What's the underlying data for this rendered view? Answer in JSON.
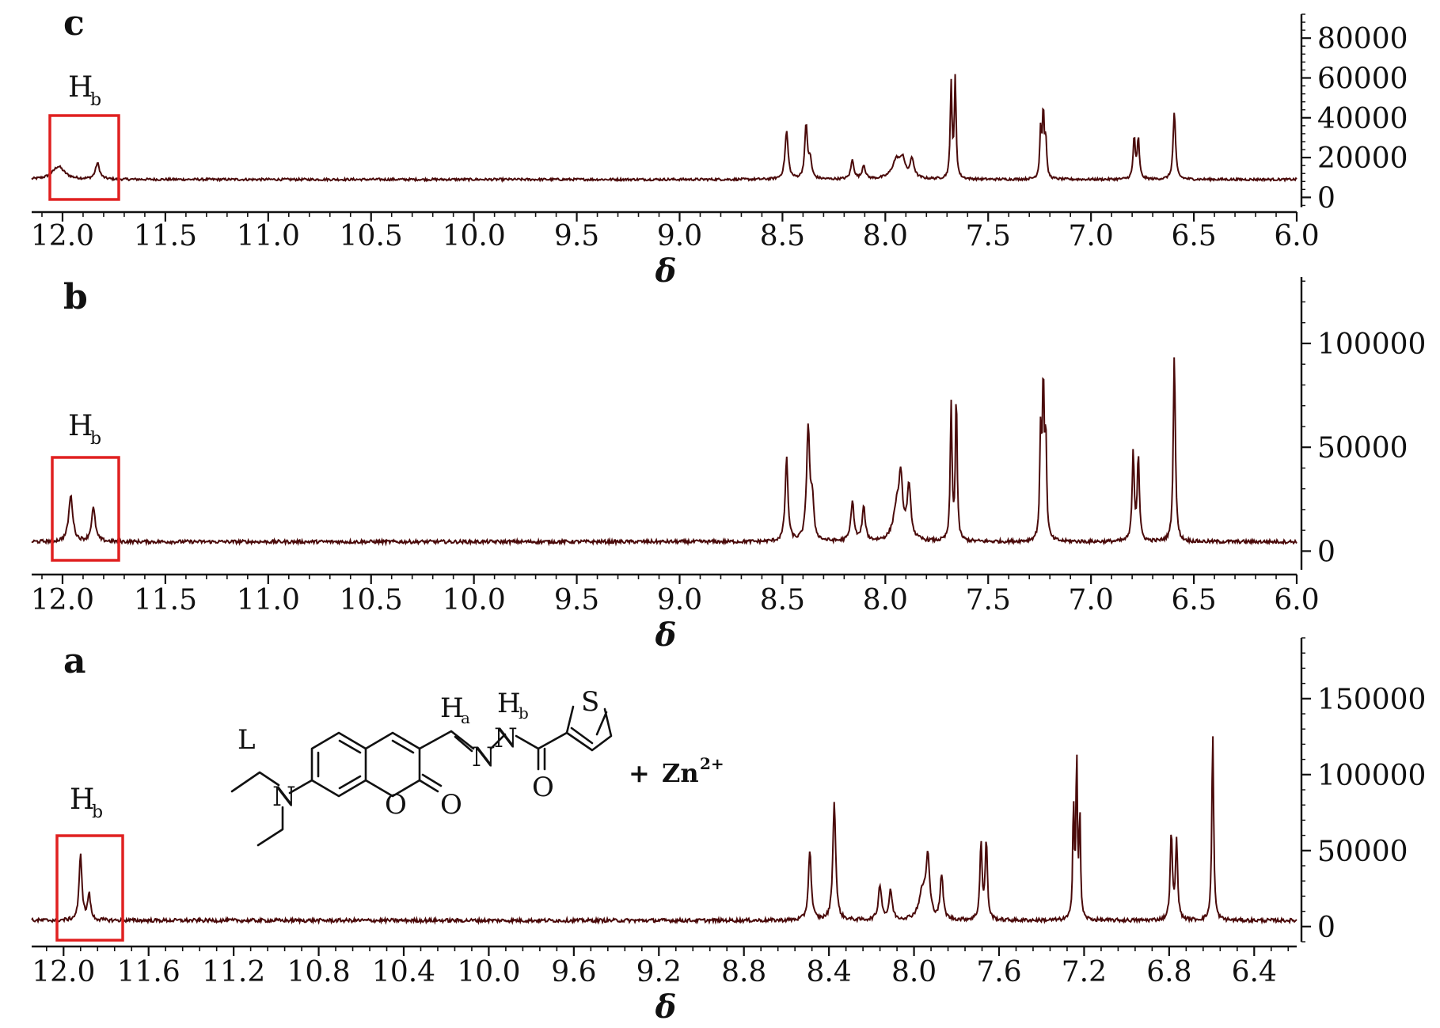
{
  "chart_data": [
    {
      "panel": "c",
      "type": "line",
      "xlabel": "δ",
      "xlim": [
        12.15,
        6.0
      ],
      "ylim": [
        -5000,
        92000
      ],
      "x_ticks": [
        12.0,
        11.5,
        11.0,
        10.5,
        10.0,
        9.5,
        9.0,
        8.5,
        8.0,
        7.5,
        7.0,
        6.5,
        6.0
      ],
      "x_tick_labels": [
        "12.0",
        "11.5",
        "11.0",
        "10.5",
        "10.0",
        "9.5",
        "9.0",
        "8.5",
        "8.0",
        "7.5",
        "7.0",
        "6.5",
        "6.0"
      ],
      "y_ticks": [
        0,
        20000,
        40000,
        60000,
        80000
      ],
      "y_tick_labels": [
        "0",
        "20000",
        "40000",
        "60000",
        "80000"
      ],
      "baseline": 9000,
      "peaks": [
        {
          "x": 12.02,
          "height": 6500,
          "width": 0.035
        },
        {
          "x": 11.83,
          "height": 8000,
          "width": 0.012
        },
        {
          "x": 8.48,
          "height": 24000,
          "width": 0.009
        },
        {
          "x": 8.385,
          "height": 27000,
          "width": 0.008
        },
        {
          "x": 8.365,
          "height": 9000,
          "width": 0.008
        },
        {
          "x": 8.16,
          "height": 9500,
          "width": 0.009
        },
        {
          "x": 8.105,
          "height": 7000,
          "width": 0.009
        },
        {
          "x": 7.945,
          "height": 10000,
          "width": 0.025
        },
        {
          "x": 7.915,
          "height": 8000,
          "width": 0.012
        },
        {
          "x": 7.87,
          "height": 9500,
          "width": 0.012
        },
        {
          "x": 7.68,
          "height": 48000,
          "width": 0.005
        },
        {
          "x": 7.66,
          "height": 50000,
          "width": 0.005
        },
        {
          "x": 7.245,
          "height": 24000,
          "width": 0.005
        },
        {
          "x": 7.232,
          "height": 33000,
          "width": 0.005
        },
        {
          "x": 7.22,
          "height": 19000,
          "width": 0.005
        },
        {
          "x": 6.79,
          "height": 21000,
          "width": 0.006
        },
        {
          "x": 6.77,
          "height": 20000,
          "width": 0.006
        },
        {
          "x": 6.595,
          "height": 34000,
          "width": 0.007
        }
      ],
      "annotation": {
        "main": "H",
        "sub": "b"
      },
      "highlight_range": [
        12.09,
        11.77
      ]
    },
    {
      "panel": "b",
      "type": "line",
      "xlabel": "δ",
      "xlim": [
        12.15,
        6.0
      ],
      "ylim": [
        -9000,
        132000
      ],
      "x_ticks": [
        12.0,
        11.5,
        11.0,
        10.5,
        10.0,
        9.5,
        9.0,
        8.5,
        8.0,
        7.5,
        7.0,
        6.5,
        6.0
      ],
      "x_tick_labels": [
        "12.0",
        "11.5",
        "11.0",
        "10.5",
        "10.0",
        "9.5",
        "9.0",
        "8.5",
        "8.0",
        "7.5",
        "7.0",
        "6.5",
        "6.0"
      ],
      "y_ticks": [
        0,
        50000,
        100000
      ],
      "y_tick_labels": [
        "0",
        "50000",
        "100000"
      ],
      "baseline": 4500,
      "peaks": [
        {
          "x": 11.96,
          "height": 22000,
          "width": 0.012
        },
        {
          "x": 11.85,
          "height": 16000,
          "width": 0.011
        },
        {
          "x": 8.48,
          "height": 40000,
          "width": 0.008
        },
        {
          "x": 8.375,
          "height": 55000,
          "width": 0.009
        },
        {
          "x": 8.355,
          "height": 18000,
          "width": 0.008
        },
        {
          "x": 8.16,
          "height": 19000,
          "width": 0.009
        },
        {
          "x": 8.105,
          "height": 16000,
          "width": 0.009
        },
        {
          "x": 7.945,
          "height": 15000,
          "width": 0.02
        },
        {
          "x": 7.925,
          "height": 26000,
          "width": 0.011
        },
        {
          "x": 7.885,
          "height": 25000,
          "width": 0.011
        },
        {
          "x": 7.68,
          "height": 66000,
          "width": 0.005
        },
        {
          "x": 7.655,
          "height": 70000,
          "width": 0.005
        },
        {
          "x": 7.245,
          "height": 50000,
          "width": 0.005
        },
        {
          "x": 7.232,
          "height": 74000,
          "width": 0.005
        },
        {
          "x": 7.22,
          "height": 47000,
          "width": 0.005
        },
        {
          "x": 6.795,
          "height": 43000,
          "width": 0.006
        },
        {
          "x": 6.77,
          "height": 41000,
          "width": 0.006
        },
        {
          "x": 6.595,
          "height": 91000,
          "width": 0.006
        }
      ],
      "annotation": {
        "main": "H",
        "sub": "b"
      },
      "highlight_range": [
        12.08,
        11.75
      ]
    },
    {
      "panel": "a",
      "type": "line",
      "xlabel": "δ",
      "xlim": [
        12.15,
        6.2
      ],
      "ylim": [
        -10000,
        190000
      ],
      "x_ticks": [
        12.0,
        11.6,
        11.2,
        10.8,
        10.4,
        10.0,
        9.6,
        9.2,
        8.8,
        8.4,
        8.0,
        7.6,
        7.2,
        6.8,
        6.4
      ],
      "x_tick_labels": [
        "12.0",
        "11.6",
        "11.2",
        "10.8",
        "10.4",
        "10.0",
        "9.6",
        "9.2",
        "8.8",
        "8.4",
        "8.0",
        "7.6",
        "7.2",
        "6.8",
        "6.4"
      ],
      "y_ticks": [
        0,
        50000,
        100000,
        150000
      ],
      "y_tick_labels": [
        "0",
        "50000",
        "100000",
        "150000"
      ],
      "baseline": 4000,
      "peaks": [
        {
          "x": 11.92,
          "height": 43000,
          "width": 0.008
        },
        {
          "x": 11.88,
          "height": 17000,
          "width": 0.008
        },
        {
          "x": 8.49,
          "height": 46000,
          "width": 0.008
        },
        {
          "x": 8.375,
          "height": 78000,
          "width": 0.008
        },
        {
          "x": 8.16,
          "height": 23000,
          "width": 0.009
        },
        {
          "x": 8.11,
          "height": 19000,
          "width": 0.009
        },
        {
          "x": 7.935,
          "height": 38000,
          "width": 0.01
        },
        {
          "x": 7.96,
          "height": 18000,
          "width": 0.02
        },
        {
          "x": 7.87,
          "height": 29000,
          "width": 0.008
        },
        {
          "x": 7.685,
          "height": 51000,
          "width": 0.006
        },
        {
          "x": 7.66,
          "height": 52000,
          "width": 0.006
        },
        {
          "x": 7.25,
          "height": 77000,
          "width": 0.004
        },
        {
          "x": 7.235,
          "height": 108000,
          "width": 0.004
        },
        {
          "x": 7.22,
          "height": 68000,
          "width": 0.004
        },
        {
          "x": 6.79,
          "height": 57000,
          "width": 0.006
        },
        {
          "x": 6.765,
          "height": 51000,
          "width": 0.006
        },
        {
          "x": 6.595,
          "height": 124000,
          "width": 0.005
        }
      ],
      "annotation": {
        "main": "H",
        "sub": "b"
      },
      "highlight_range": [
        12.11,
        11.76
      ]
    }
  ],
  "structure": {
    "label": "L",
    "atoms": {
      "n_amine": "N",
      "o_ring": "O",
      "o_carbonyl": "O",
      "n_imine": "N",
      "n_amide": "N",
      "o_amide": "O",
      "s_thiophene": "S"
    },
    "ha_main": "H",
    "ha_sub": "a",
    "hb_main": "H",
    "hb_sub": "b",
    "plus": "+",
    "metal": "Zn",
    "metal_charge": "2+"
  },
  "colors": {
    "spectrum": "#4a0a0a",
    "highlight": "#e02020",
    "axis": "#111111"
  }
}
